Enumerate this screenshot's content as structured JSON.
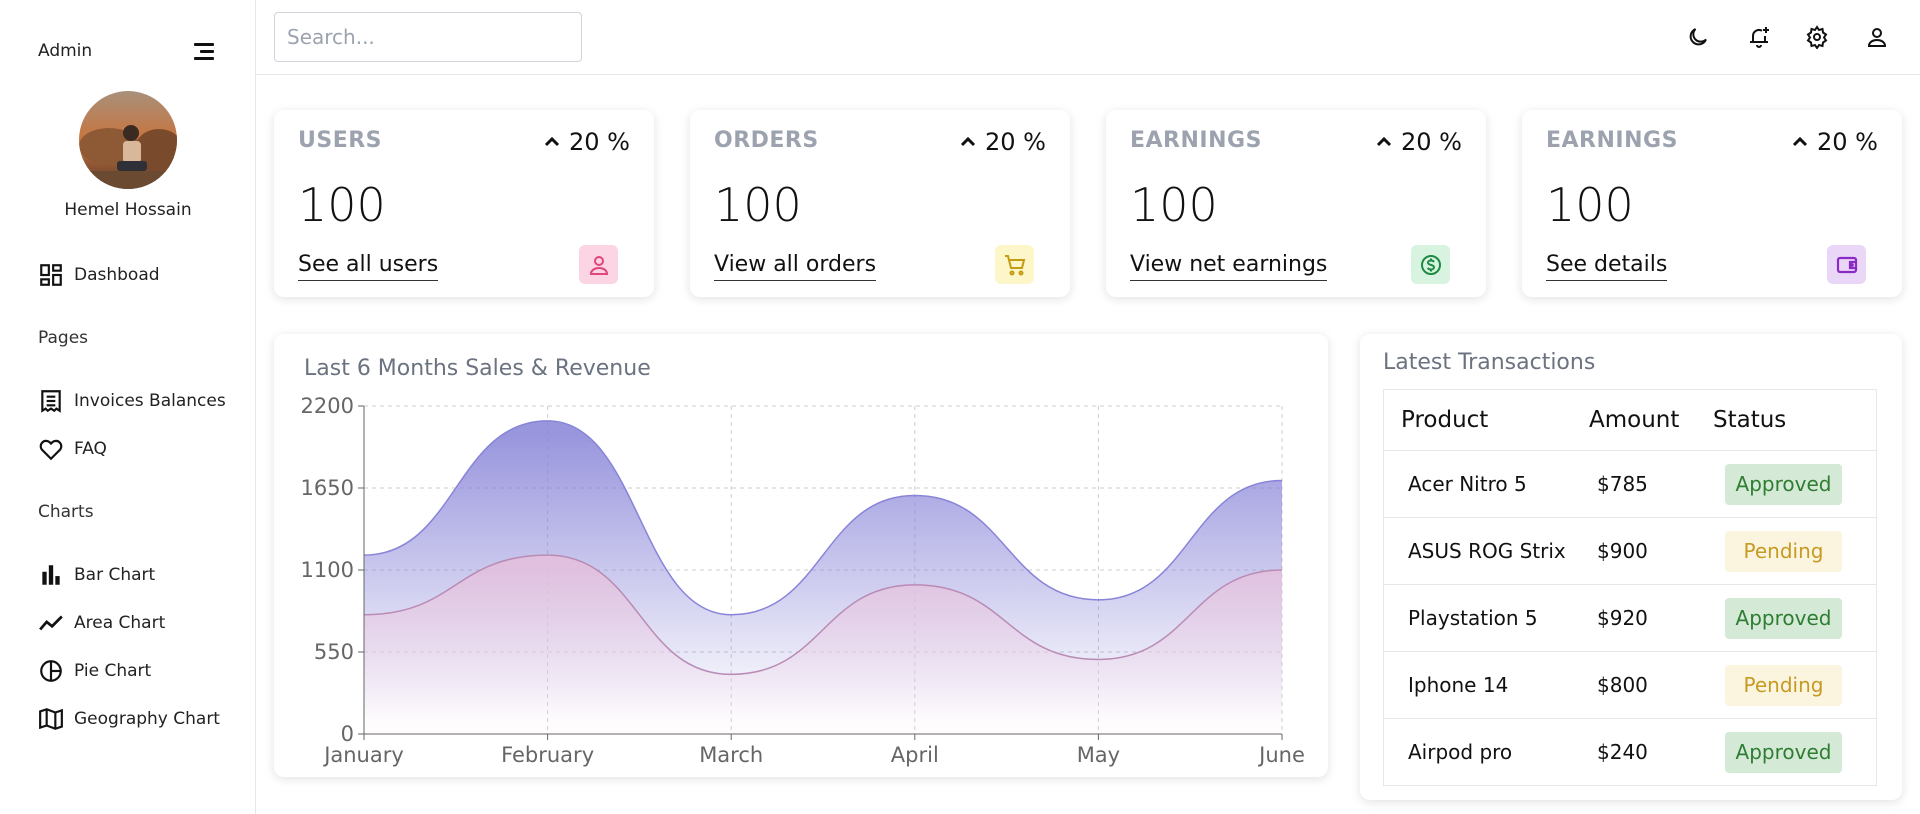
{
  "sidebar": {
    "brand": "Admin",
    "user_name": "Hemel Hossain",
    "dashboard_label": "Dashboad",
    "pages_section": "Pages",
    "pages": [
      {
        "label": "Invoices Balances",
        "icon": "invoice-icon"
      },
      {
        "label": "FAQ",
        "icon": "heart-icon"
      }
    ],
    "charts_section": "Charts",
    "charts": [
      {
        "label": "Bar Chart",
        "icon": "bar-chart-icon"
      },
      {
        "label": "Area Chart",
        "icon": "line-chart-icon"
      },
      {
        "label": "Pie Chart",
        "icon": "pie-chart-icon"
      },
      {
        "label": "Geography Chart",
        "icon": "map-icon"
      }
    ]
  },
  "topbar": {
    "search_placeholder": "Search...",
    "icons": [
      "moon-icon",
      "notification-add-icon",
      "gear-icon",
      "user-icon"
    ]
  },
  "widgets": [
    {
      "title": "USERS",
      "percent": "20 %",
      "value": "100",
      "link": "See all users",
      "icon": "user-icon",
      "icon_bg": "#fbd5e4",
      "icon_color": "#e0457b"
    },
    {
      "title": "ORDERS",
      "percent": "20 %",
      "value": "100",
      "link": "View all orders",
      "icon": "cart-icon",
      "icon_bg": "#fdf6c8",
      "icon_color": "#c49b12"
    },
    {
      "title": "EARNINGS",
      "percent": "20 %",
      "value": "100",
      "link": "View net earnings",
      "icon": "dollar-icon",
      "icon_bg": "#d8f3df",
      "icon_color": "#1f8a44"
    },
    {
      "title": "EARNINGS",
      "percent": "20 %",
      "value": "100",
      "link": "See details",
      "icon": "wallet-icon",
      "icon_bg": "#ead7f7",
      "icon_color": "#8a2bc6"
    }
  ],
  "chart_card": {
    "title": "Last 6 Months Sales & Revenue"
  },
  "chart_data": {
    "type": "area",
    "categories": [
      "January",
      "February",
      "March",
      "April",
      "May",
      "June"
    ],
    "series": [
      {
        "values": [
          1200,
          2100,
          800,
          1600,
          900,
          1700
        ],
        "color": "#8884d8"
      },
      {
        "values": [
          800,
          1200,
          400,
          1000,
          500,
          1100
        ],
        "color": "#b98bb5"
      }
    ],
    "yticks": [
      0,
      550,
      1100,
      1650,
      2200
    ],
    "ylim": [
      0,
      2200
    ],
    "grid": true
  },
  "transactions": {
    "title": "Latest Transactions",
    "headers": [
      "Product",
      "Amount",
      "Status"
    ],
    "rows": [
      {
        "product": "Acer Nitro 5",
        "amount": "$785",
        "status": "Approved"
      },
      {
        "product": "ASUS ROG Strix",
        "amount": "$900",
        "status": "Pending"
      },
      {
        "product": "Playstation 5",
        "amount": "$920",
        "status": "Approved"
      },
      {
        "product": "Iphone 14",
        "amount": "$800",
        "status": "Pending"
      },
      {
        "product": "Airpod pro",
        "amount": "$240",
        "status": "Approved"
      }
    ]
  }
}
